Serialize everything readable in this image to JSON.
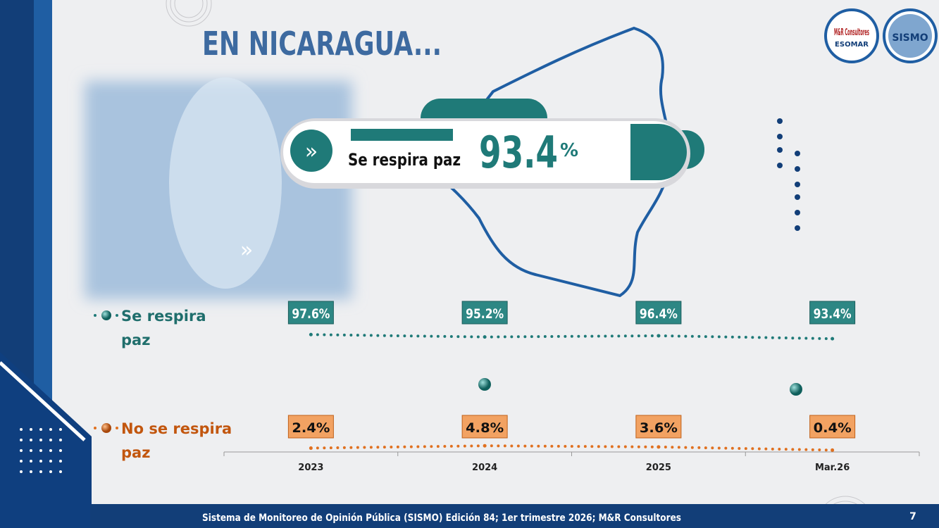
{
  "chart_data": {
    "type": "line",
    "title": "EN NICARAGUA...",
    "highlight": {
      "label": "Se respira paz",
      "value": 93.4,
      "unit": "%"
    },
    "categories": [
      "2023",
      "2024",
      "2025",
      "Mar.26"
    ],
    "series": [
      {
        "name": "Se respira paz",
        "color": "#1f7a78",
        "values": [
          97.6,
          95.2,
          96.4,
          93.4
        ],
        "value_labels": [
          "97.6%",
          "95.2%",
          "96.4%",
          "93.4%"
        ]
      },
      {
        "name": "No se respira paz",
        "color": "#e0701f",
        "values": [
          2.4,
          4.8,
          3.6,
          0.4
        ],
        "value_labels": [
          "2.4%",
          "4.8%",
          "3.6%",
          "0.4%"
        ]
      }
    ],
    "logos": [
      "M&R Consultores",
      "ESOMAR",
      "SISMO"
    ],
    "footer": "Sistema de Monitoreo de Opinión Pública (SISMO) Edición 84; 1er trimestre 2026; M&R Consultores",
    "page_number": "7"
  }
}
